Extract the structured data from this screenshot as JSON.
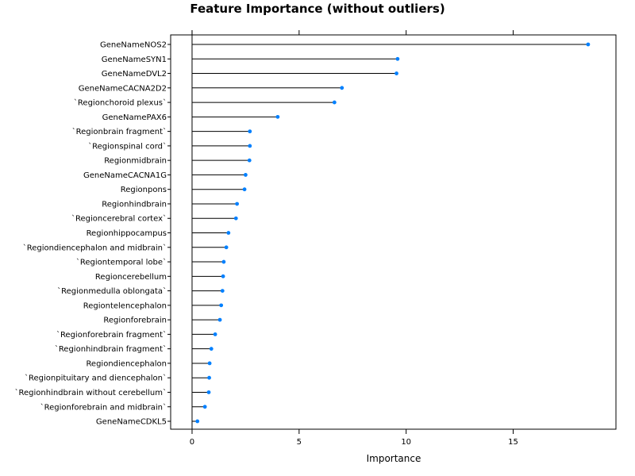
{
  "chart_data": {
    "type": "dot",
    "title": "Feature Importance (without outliers)",
    "xlabel": "Importance",
    "ylabel": "",
    "xlim": [
      -1,
      19.8
    ],
    "xticks": [
      0,
      5,
      10,
      15
    ],
    "grid": false,
    "legend": "none",
    "marker_color": "#0080ff",
    "line_color": "#000000",
    "categories": [
      "GeneNameNOS2",
      "GeneNameSYN1",
      "GeneNameDVL2",
      "GeneNameCACNA2D2",
      "`Regionchoroid plexus`",
      "GeneNamePAX6",
      "`Regionbrain fragment`",
      "`Regionspinal cord`",
      "Regionmidbrain",
      "GeneNameCACNA1G",
      "Regionpons",
      "Regionhindbrain",
      "`Regioncerebral cortex`",
      "Regionhippocampus",
      "`Regiondiencephalon and midbrain`",
      "`Regiontemporal lobe`",
      "Regioncerebellum",
      "`Regionmedulla oblongata`",
      "Regiontelencephalon",
      "Regionforebrain",
      "`Regionforebrain fragment`",
      "`Regionhindbrain fragment`",
      "Regiondiencephalon",
      "`Regionpituitary and diencephalon`",
      "`Regionhindbrain without cerebellum`",
      "`Regionforebrain and midbrain`",
      "GeneNameCDKL5"
    ],
    "values": [
      18.5,
      9.6,
      9.55,
      7.0,
      6.65,
      4.0,
      2.7,
      2.7,
      2.68,
      2.5,
      2.45,
      2.1,
      2.05,
      1.7,
      1.6,
      1.48,
      1.45,
      1.42,
      1.36,
      1.3,
      1.08,
      0.9,
      0.82,
      0.8,
      0.78,
      0.6,
      0.25
    ]
  }
}
